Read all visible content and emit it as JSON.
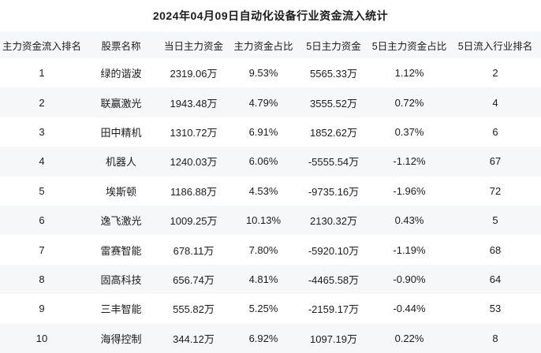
{
  "title": "2024年04月09日自动化设备行业资金流入统计",
  "colors": {
    "stripe": "#f6f7f9",
    "background": "#ffffff",
    "text": "#1c1c1e"
  },
  "chart_data": {
    "type": "table",
    "title": "2024年04月09日自动化设备行业资金流入统计",
    "columns": [
      "主力资金流入排名",
      "股票名称",
      "当日主力资金",
      "主力资金占比",
      "5日主力资金",
      "5日主力资金占比",
      "5日流入行业排名"
    ],
    "rows": [
      [
        "1",
        "绿的谐波",
        "2319.06万",
        "9.53%",
        "5565.33万",
        "1.12%",
        "2"
      ],
      [
        "2",
        "联赢激光",
        "1943.48万",
        "4.79%",
        "3555.52万",
        "0.72%",
        "4"
      ],
      [
        "3",
        "田中精机",
        "1310.72万",
        "6.91%",
        "1852.62万",
        "0.37%",
        "6"
      ],
      [
        "4",
        "机器人",
        "1240.03万",
        "6.06%",
        "-5555.54万",
        "-1.12%",
        "67"
      ],
      [
        "5",
        "埃斯顿",
        "1186.88万",
        "4.53%",
        "-9735.16万",
        "-1.96%",
        "72"
      ],
      [
        "6",
        "逸飞激光",
        "1009.25万",
        "10.13%",
        "2130.32万",
        "0.43%",
        "5"
      ],
      [
        "7",
        "雷赛智能",
        "678.11万",
        "7.80%",
        "-5920.10万",
        "-1.19%",
        "68"
      ],
      [
        "8",
        "固高科技",
        "656.74万",
        "4.81%",
        "-4465.58万",
        "-0.90%",
        "64"
      ],
      [
        "9",
        "三丰智能",
        "555.82万",
        "5.25%",
        "-2159.17万",
        "-0.44%",
        "53"
      ],
      [
        "10",
        "海得控制",
        "344.12万",
        "6.92%",
        "1097.19万",
        "0.22%",
        "8"
      ]
    ]
  }
}
